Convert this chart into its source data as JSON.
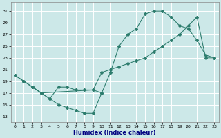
{
  "xlabel": "Humidex (Indice chaleur)",
  "bg_color": "#cce8e8",
  "grid_color": "#b0d8d8",
  "line_color": "#2e7d6e",
  "xlim": [
    -0.5,
    23.5
  ],
  "ylim": [
    12,
    32.5
  ],
  "xticks": [
    0,
    1,
    2,
    3,
    4,
    5,
    6,
    7,
    8,
    9,
    10,
    11,
    12,
    13,
    14,
    15,
    16,
    17,
    18,
    19,
    20,
    21,
    22,
    23
  ],
  "yticks": [
    13,
    15,
    17,
    19,
    21,
    23,
    25,
    27,
    29,
    31
  ],
  "line1_x": [
    0,
    1,
    2,
    3,
    4,
    5,
    6,
    7,
    8,
    9,
    10,
    11,
    12,
    13,
    14,
    15,
    16,
    17,
    18,
    19,
    20,
    21,
    22,
    23
  ],
  "line1_y": [
    20,
    19,
    18,
    17,
    16,
    15,
    14.5,
    14,
    13.5,
    13.5,
    17,
    20.5,
    25,
    27,
    28,
    30.5,
    31,
    31,
    30,
    28.5,
    28,
    26,
    23.5,
    23
  ],
  "line2_x": [
    0,
    1,
    2,
    3,
    9,
    10,
    11,
    12,
    13,
    14,
    15,
    16,
    17,
    18,
    19,
    20,
    21,
    22,
    23
  ],
  "line2_y": [
    20,
    19,
    18,
    17,
    17.5,
    20.5,
    21,
    21.5,
    22,
    22.5,
    23,
    24,
    25,
    26,
    27,
    28.5,
    30,
    23,
    23
  ],
  "line3_x": [
    2,
    3,
    4,
    5,
    6,
    7,
    8,
    9,
    10
  ],
  "line3_y": [
    18,
    17,
    16,
    18,
    18,
    17.5,
    17.5,
    17.5,
    17
  ]
}
